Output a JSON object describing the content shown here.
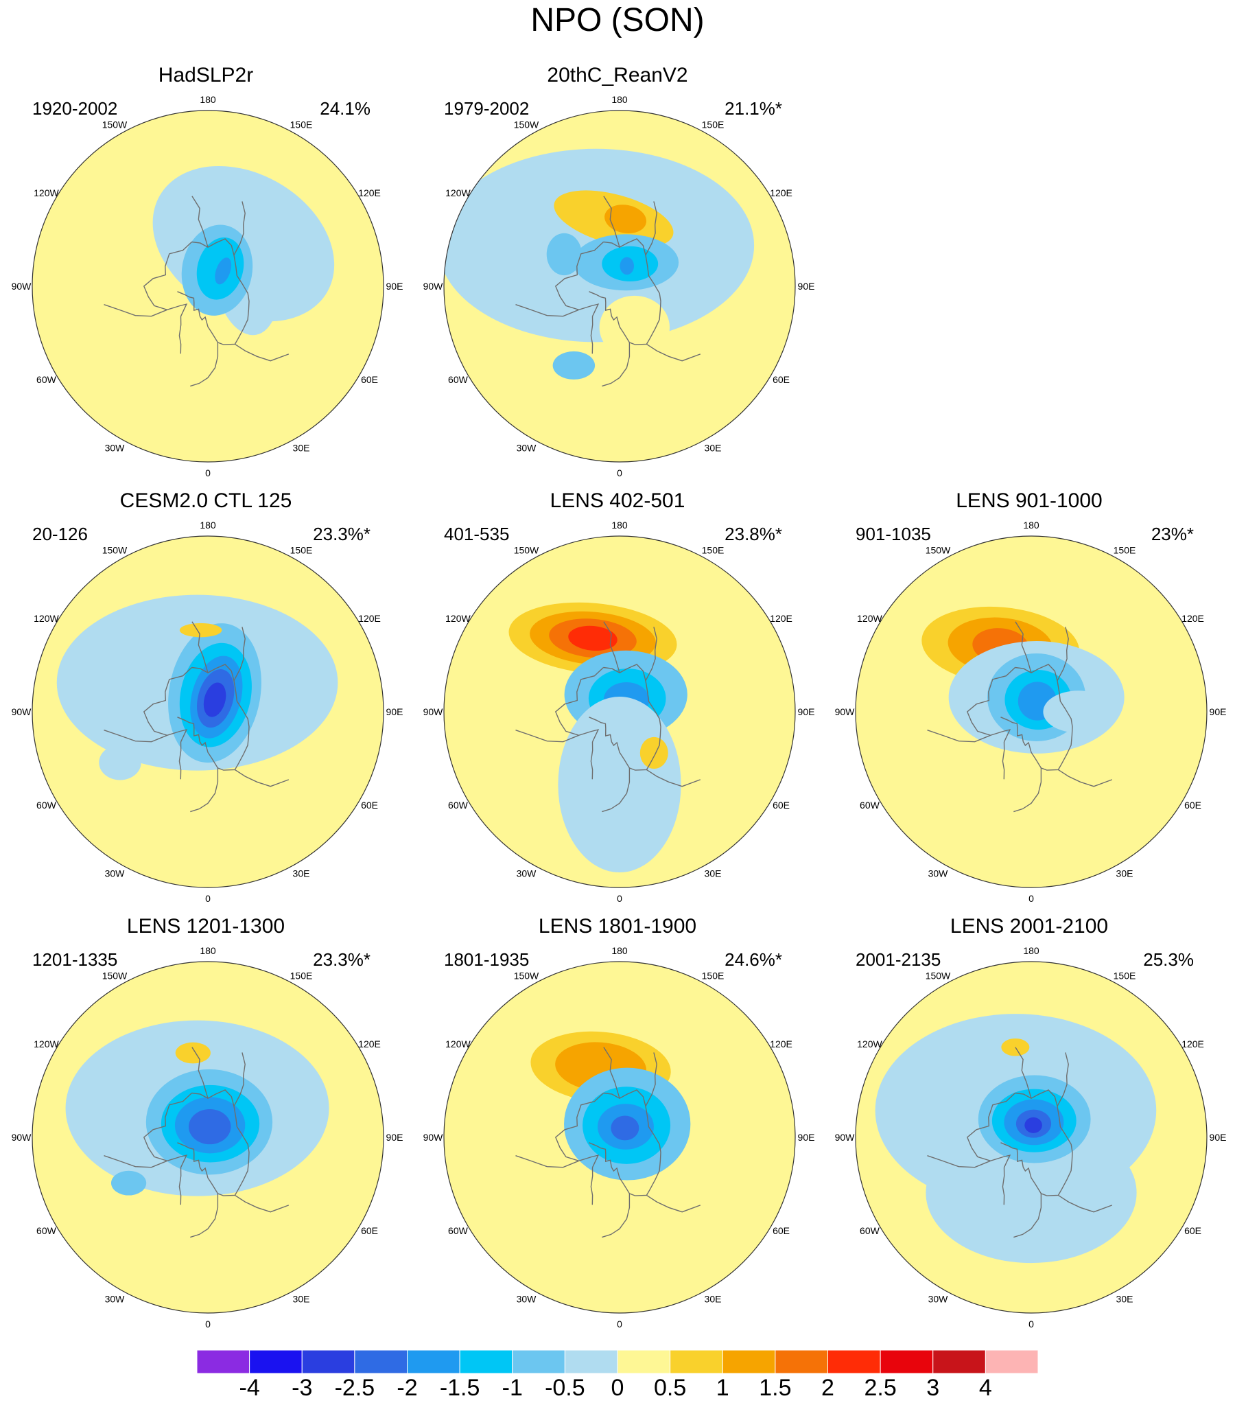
{
  "title": "NPO (SON)",
  "longitude_labels": [
    "180",
    "150E",
    "120E",
    "90E",
    "60E",
    "30E",
    "0",
    "30W",
    "60W",
    "90W",
    "120W",
    "150W"
  ],
  "colors": {
    "coast": "#6e6e6e",
    "border": "#333333",
    "background_positive": "#fef795"
  },
  "colorbar": {
    "levels": [
      "-4",
      "-3",
      "-2.5",
      "-2",
      "-1.5",
      "-1",
      "-0.5",
      "0",
      "0.5",
      "1",
      "1.5",
      "2",
      "2.5",
      "3",
      "4"
    ],
    "colors": [
      "#8b2be2",
      "#1a12f0",
      "#2a3ee0",
      "#2f6be4",
      "#1f9af0",
      "#00c6f5",
      "#6cc6f0",
      "#b0dcf0",
      "#fef795",
      "#f9d12c",
      "#f6a400",
      "#f57207",
      "#ff2c06",
      "#e8040c",
      "#c8141a",
      "#fdb4b4"
    ]
  },
  "panels": [
    {
      "id": "hadslp2r",
      "title": "HadSLP2r",
      "range": "1920-2002",
      "percent": "24.1%",
      "blobs": [
        {
          "lon": 140,
          "colat": 35,
          "rx": 0.55,
          "ry": 0.4,
          "rot": 30,
          "color": 7
        },
        {
          "lon": 100,
          "colat": 25,
          "rx": 0.18,
          "ry": 0.32,
          "rot": -10,
          "color": 7
        },
        {
          "lon": 150,
          "colat": 12,
          "rx": 0.2,
          "ry": 0.26,
          "rot": 10,
          "color": 6
        },
        {
          "lon": 145,
          "colat": 14,
          "rx": 0.13,
          "ry": 0.18,
          "rot": 15,
          "color": 5
        },
        {
          "lon": 135,
          "colat": 14,
          "rx": 0.04,
          "ry": 0.08,
          "rot": 20,
          "color": 4
        }
      ]
    },
    {
      "id": "twentiethc",
      "title": "20thC_ReanV2",
      "range": "1979-2002",
      "percent": "21.1%*",
      "blobs": [
        {
          "lon": 210,
          "colat": 30,
          "rx": 0.9,
          "ry": 0.55,
          "rot": 0,
          "color": 7
        },
        {
          "lon": 185,
          "colat": 42,
          "rx": 0.35,
          "ry": 0.14,
          "rot": 15,
          "color": 9
        },
        {
          "lon": 175,
          "colat": 42,
          "rx": 0.12,
          "ry": 0.08,
          "rot": 10,
          "color": 10
        },
        {
          "lon": 165,
          "colat": 16,
          "rx": 0.3,
          "ry": 0.16,
          "rot": 0,
          "color": 6
        },
        {
          "lon": 155,
          "colat": 16,
          "rx": 0.16,
          "ry": 0.1,
          "rot": 0,
          "color": 5
        },
        {
          "lon": 160,
          "colat": 14,
          "rx": 0.04,
          "ry": 0.05,
          "rot": 0,
          "color": 4
        },
        {
          "lon": 240,
          "colat": 40,
          "rx": 0.1,
          "ry": 0.12,
          "rot": 0,
          "color": 6
        },
        {
          "lon": 330,
          "colat": 55,
          "rx": 0.12,
          "ry": 0.08,
          "rot": 0,
          "color": 6
        },
        {
          "lon": 20,
          "colat": 28,
          "rx": 0.2,
          "ry": 0.18,
          "rot": 0,
          "color": 8
        }
      ]
    },
    {
      "id": "cesm2",
      "title": "CESM2.0 CTL 125",
      "range": "20-126",
      "percent": "23.3%*",
      "blobs": [
        {
          "lon": 200,
          "colat": 20,
          "rx": 0.8,
          "ry": 0.5,
          "rot": 0,
          "color": 7
        },
        {
          "lon": 160,
          "colat": 13,
          "rx": 0.26,
          "ry": 0.4,
          "rot": 10,
          "color": 6
        },
        {
          "lon": 155,
          "colat": 12,
          "rx": 0.2,
          "ry": 0.3,
          "rot": 12,
          "color": 5
        },
        {
          "lon": 150,
          "colat": 11,
          "rx": 0.14,
          "ry": 0.24,
          "rot": 15,
          "color": 4
        },
        {
          "lon": 150,
          "colat": 10,
          "rx": 0.1,
          "ry": 0.17,
          "rot": 15,
          "color": 3
        },
        {
          "lon": 150,
          "colat": 9,
          "rx": 0.06,
          "ry": 0.1,
          "rot": 15,
          "color": 2
        },
        {
          "lon": 185,
          "colat": 50,
          "rx": 0.12,
          "ry": 0.04,
          "rot": 0,
          "color": 9
        },
        {
          "lon": 300,
          "colat": 60,
          "rx": 0.12,
          "ry": 0.1,
          "rot": 0,
          "color": 7
        }
      ]
    },
    {
      "id": "lens402",
      "title": "LENS 402-501",
      "range": "401-535",
      "percent": "23.8%*",
      "blobs": [
        {
          "lon": 200,
          "colat": 48,
          "rx": 0.48,
          "ry": 0.2,
          "rot": 5,
          "color": 9
        },
        {
          "lon": 200,
          "colat": 48,
          "rx": 0.36,
          "ry": 0.15,
          "rot": 5,
          "color": 10
        },
        {
          "lon": 200,
          "colat": 48,
          "rx": 0.25,
          "ry": 0.11,
          "rot": 5,
          "color": 11
        },
        {
          "lon": 200,
          "colat": 48,
          "rx": 0.14,
          "ry": 0.07,
          "rot": 5,
          "color": 12
        },
        {
          "lon": 160,
          "colat": 12,
          "rx": 0.35,
          "ry": 0.25,
          "rot": 0,
          "color": 6
        },
        {
          "lon": 150,
          "colat": 10,
          "rx": 0.22,
          "ry": 0.17,
          "rot": 0,
          "color": 5
        },
        {
          "lon": 150,
          "colat": 9,
          "rx": 0.13,
          "ry": 0.1,
          "rot": 0,
          "color": 4
        },
        {
          "lon": 0,
          "colat": 45,
          "rx": 0.35,
          "ry": 0.5,
          "rot": 0,
          "color": 7
        },
        {
          "lon": 40,
          "colat": 34,
          "rx": 0.08,
          "ry": 0.09,
          "rot": 0,
          "color": 9
        }
      ]
    },
    {
      "id": "lens901",
      "title": "LENS 901-1000",
      "range": "901-1035",
      "percent": "23%*",
      "blobs": [
        {
          "lon": 205,
          "colat": 45,
          "rx": 0.45,
          "ry": 0.22,
          "rot": 5,
          "color": 9
        },
        {
          "lon": 205,
          "colat": 45,
          "rx": 0.3,
          "ry": 0.16,
          "rot": 5,
          "color": 10
        },
        {
          "lon": 205,
          "colat": 45,
          "rx": 0.16,
          "ry": 0.1,
          "rot": 5,
          "color": 11
        },
        {
          "lon": 160,
          "colat": 10,
          "rx": 0.5,
          "ry": 0.32,
          "rot": 0,
          "color": 7
        },
        {
          "lon": 160,
          "colat": 10,
          "rx": 0.28,
          "ry": 0.25,
          "rot": 0,
          "color": 6
        },
        {
          "lon": 150,
          "colat": 9,
          "rx": 0.19,
          "ry": 0.17,
          "rot": 0,
          "color": 5
        },
        {
          "lon": 150,
          "colat": 8,
          "rx": 0.11,
          "ry": 0.11,
          "rot": 0,
          "color": 4
        },
        {
          "lon": 90,
          "colat": 30,
          "rx": 0.2,
          "ry": 0.12,
          "rot": 0,
          "color": 7
        }
      ]
    },
    {
      "id": "lens1201",
      "title": "LENS 1201-1300",
      "range": "1201-1335",
      "percent": "23.3%*",
      "blobs": [
        {
          "lon": 200,
          "colat": 20,
          "rx": 0.75,
          "ry": 0.5,
          "rot": 0,
          "color": 7
        },
        {
          "lon": 175,
          "colat": 10,
          "rx": 0.36,
          "ry": 0.3,
          "rot": 0,
          "color": 6
        },
        {
          "lon": 170,
          "colat": 9,
          "rx": 0.28,
          "ry": 0.22,
          "rot": 0,
          "color": 5
        },
        {
          "lon": 170,
          "colat": 8,
          "rx": 0.2,
          "ry": 0.16,
          "rot": 0,
          "color": 4
        },
        {
          "lon": 170,
          "colat": 7,
          "rx": 0.12,
          "ry": 0.1,
          "rot": 0,
          "color": 3
        },
        {
          "lon": 190,
          "colat": 52,
          "rx": 0.1,
          "ry": 0.06,
          "rot": 0,
          "color": 9
        },
        {
          "lon": 300,
          "colat": 55,
          "rx": 0.1,
          "ry": 0.07,
          "rot": 0,
          "color": 6
        }
      ]
    },
    {
      "id": "lens1801",
      "title": "LENS 1801-1900",
      "range": "1801-1935",
      "percent": "24.6%*",
      "blobs": [
        {
          "lon": 195,
          "colat": 45,
          "rx": 0.4,
          "ry": 0.2,
          "rot": 5,
          "color": 9
        },
        {
          "lon": 195,
          "colat": 45,
          "rx": 0.26,
          "ry": 0.14,
          "rot": 5,
          "color": 10
        },
        {
          "lon": 150,
          "colat": 10,
          "rx": 0.36,
          "ry": 0.32,
          "rot": 0,
          "color": 6
        },
        {
          "lon": 150,
          "colat": 9,
          "rx": 0.25,
          "ry": 0.22,
          "rot": 0,
          "color": 5
        },
        {
          "lon": 150,
          "colat": 8,
          "rx": 0.16,
          "ry": 0.13,
          "rot": 0,
          "color": 4
        },
        {
          "lon": 150,
          "colat": 7,
          "rx": 0.08,
          "ry": 0.07,
          "rot": 0,
          "color": 3
        }
      ]
    },
    {
      "id": "lens2001",
      "title": "LENS 2001-2100",
      "range": "2001-2135",
      "percent": "25.3%",
      "blobs": [
        {
          "lon": 210,
          "colat": 20,
          "rx": 0.8,
          "ry": 0.55,
          "rot": 0,
          "color": 7
        },
        {
          "lon": 0,
          "colat": 35,
          "rx": 0.6,
          "ry": 0.4,
          "rot": 0,
          "color": 7
        },
        {
          "lon": 170,
          "colat": 12,
          "rx": 0.32,
          "ry": 0.25,
          "rot": 0,
          "color": 6
        },
        {
          "lon": 170,
          "colat": 11,
          "rx": 0.24,
          "ry": 0.18,
          "rot": 0,
          "color": 5
        },
        {
          "lon": 170,
          "colat": 10,
          "rx": 0.17,
          "ry": 0.13,
          "rot": 0,
          "color": 4
        },
        {
          "lon": 170,
          "colat": 9,
          "rx": 0.1,
          "ry": 0.08,
          "rot": 0,
          "color": 3
        },
        {
          "lon": 170,
          "colat": 8,
          "rx": 0.05,
          "ry": 0.045,
          "rot": 0,
          "color": 2
        },
        {
          "lon": 190,
          "colat": 55,
          "rx": 0.08,
          "ry": 0.05,
          "rot": 0,
          "color": 9
        }
      ]
    }
  ]
}
